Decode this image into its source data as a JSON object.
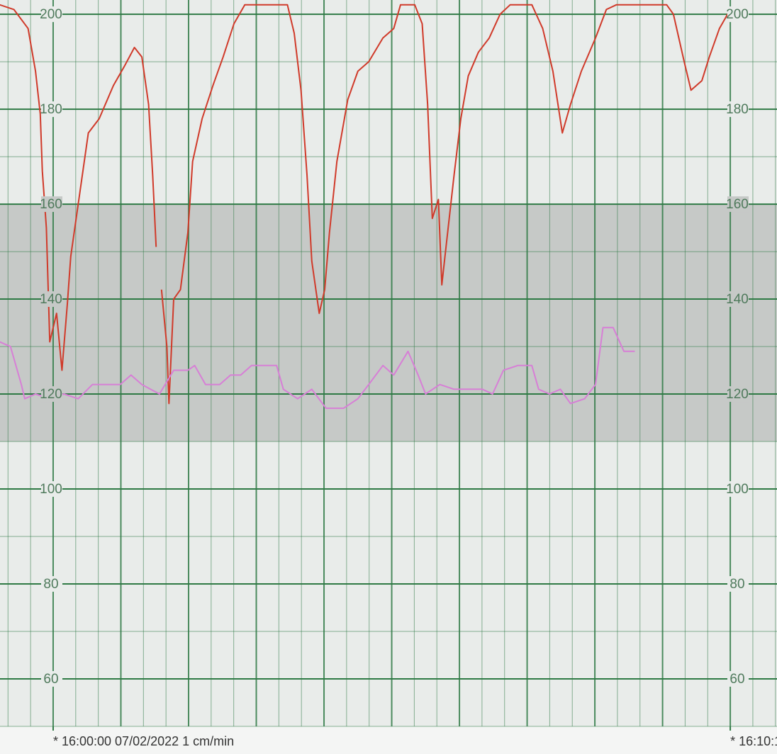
{
  "chart_data": {
    "type": "line",
    "xlim": [
      -0.785,
      10.69
    ],
    "ylim": [
      50,
      203
    ],
    "yticks": [
      60,
      80,
      100,
      120,
      140,
      160,
      180,
      200
    ],
    "xticks": [
      {
        "value": 0,
        "label": "* 16:00:00 07/02/2022  1 cm/min"
      },
      {
        "value": 10,
        "label": "* 16:10:1"
      }
    ],
    "band": [
      110,
      160
    ],
    "band_color": "#c6c9c7",
    "grid_color": "#2f7a45",
    "grid": true,
    "series": [
      {
        "color": "#d03a2a",
        "x": [
          -0.79,
          -0.58,
          -0.37,
          -0.26,
          -0.19,
          -0.16,
          -0.1,
          -0.05,
          0.05,
          0.13,
          0.21,
          0.26,
          0.37,
          0.52,
          0.68,
          0.89,
          1.05,
          1.2,
          1.31,
          1.41,
          1.47,
          1.52,
          1.56,
          1.6,
          1.68,
          1.71,
          1.78,
          1.88,
          1.99,
          2.06,
          2.2,
          2.36,
          2.51,
          2.67,
          2.83,
          3.09,
          3.25,
          3.46,
          3.56,
          3.66,
          3.75,
          3.82,
          3.93,
          4.01,
          4.08,
          4.19,
          4.35,
          4.5,
          4.66,
          4.87,
          5.03,
          5.13,
          5.34,
          5.45,
          5.53,
          5.6,
          5.69,
          5.74,
          5.81,
          5.92,
          6.02,
          6.13,
          6.28,
          6.44,
          6.6,
          6.75,
          7.07,
          7.23,
          7.38,
          7.52,
          7.64,
          7.8,
          8.01,
          8.17,
          8.32,
          9.06,
          9.16,
          9.32,
          9.42,
          9.58,
          9.69,
          9.84,
          10.0
        ],
        "values": [
          202,
          201,
          197,
          188,
          179,
          167,
          155,
          131,
          137,
          125,
          139,
          149,
          160,
          175,
          178,
          185,
          189,
          193,
          191,
          181,
          166,
          151,
          null,
          142,
          130,
          118,
          140,
          142,
          154,
          169,
          178,
          185,
          191,
          198,
          202,
          202,
          202,
          202,
          196,
          184,
          166,
          148,
          137,
          142,
          154,
          169,
          182,
          188,
          190,
          195,
          197,
          202,
          202,
          198,
          181,
          157,
          161,
          143,
          152,
          166,
          178,
          187,
          192,
          195,
          200,
          202,
          202,
          197,
          188,
          175,
          181,
          188,
          195,
          201,
          202,
          202,
          200,
          190,
          184,
          186,
          191,
          197,
          201
        ]
      },
      {
        "color": "#d77fd6",
        "x": [
          -0.79,
          -0.63,
          -0.47,
          -0.42,
          -0.26,
          -0.05,
          0.16,
          0.37,
          0.58,
          0.99,
          1.15,
          1.31,
          1.57,
          1.78,
          1.99,
          2.09,
          2.25,
          2.46,
          2.62,
          2.77,
          2.93,
          3.14,
          3.3,
          3.4,
          3.61,
          3.82,
          4.03,
          4.29,
          4.5,
          4.66,
          4.87,
          5.03,
          5.24,
          5.39,
          5.5,
          5.71,
          5.92,
          6.34,
          6.49,
          6.65,
          6.86,
          7.07,
          7.17,
          7.33,
          7.49,
          7.64,
          7.85,
          8.01,
          8.12,
          8.27,
          8.43,
          8.59
        ],
        "values": [
          131,
          130,
          122,
          119,
          120,
          119,
          120,
          119,
          122,
          122,
          124,
          122,
          120,
          125,
          125,
          126,
          122,
          122,
          124,
          124,
          126,
          126,
          126,
          121,
          119,
          121,
          117,
          117,
          119,
          122,
          126,
          124,
          129,
          124,
          120,
          122,
          121,
          121,
          120,
          125,
          126,
          126,
          121,
          120,
          121,
          118,
          119,
          122,
          134,
          134,
          129,
          129
        ]
      }
    ]
  }
}
